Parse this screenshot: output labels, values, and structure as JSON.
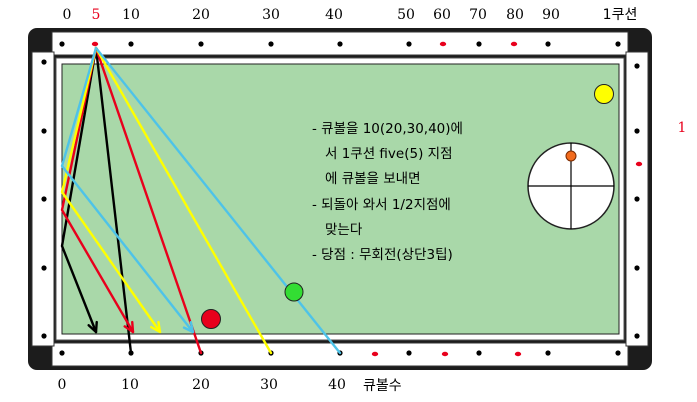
{
  "top_scale": [
    {
      "text": "0",
      "color": "#000000"
    },
    {
      "text": "5",
      "color": "#e8001c"
    },
    {
      "text": "10",
      "color": "#000000"
    },
    {
      "text": "20",
      "color": "#000000"
    },
    {
      "text": "30",
      "color": "#000000"
    },
    {
      "text": "40",
      "color": "#000000"
    },
    {
      "text": "50",
      "color": "#000000"
    },
    {
      "text": "60",
      "color": "#000000"
    },
    {
      "text": "70",
      "color": "#000000"
    },
    {
      "text": "80",
      "color": "#000000"
    },
    {
      "text": "90",
      "color": "#000000"
    },
    {
      "text": "1쿠션",
      "color": "#000000"
    }
  ],
  "bottom_scale": [
    "0",
    "10",
    "20",
    "30",
    "40"
  ],
  "bottom_caption": "큐볼수",
  "right_label": "1",
  "notes": [
    "-  큐볼을   10(20,30,40)에",
    "서  1쿠션  five(5)  지점",
    "에  큐볼을  보내면",
    "-  되돌아  와서  1/2지점에",
    "맞는다",
    "-  당점 :  무회전(상단3팁)"
  ],
  "colors": {
    "felt": "#a9d8a9",
    "rail": "#1c1c1c",
    "diamond_bed": "#ffffff",
    "path_black": "#000000",
    "path_red": "#e8001c",
    "path_yellow": "#ffff00",
    "path_blue": "#4ec3e8",
    "ball_red": "#e8001c",
    "ball_green": "#33dd33",
    "ball_yellow": "#ffff00",
    "tip_dot": "#f26b1d"
  }
}
